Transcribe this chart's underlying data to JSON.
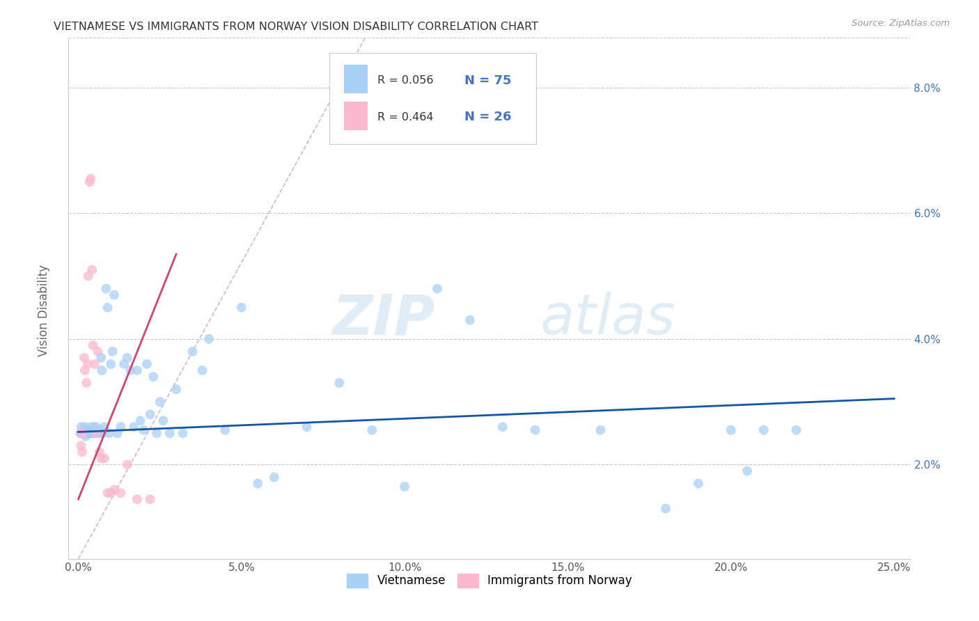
{
  "title": "VIETNAMESE VS IMMIGRANTS FROM NORWAY VISION DISABILITY CORRELATION CHART",
  "source": "Source: ZipAtlas.com",
  "xlabel_vals": [
    0.0,
    5.0,
    10.0,
    15.0,
    20.0,
    25.0
  ],
  "xlabel_ticks": [
    "0.0%",
    "5.0%",
    "10.0%",
    "15.0%",
    "20.0%",
    "25.0%"
  ],
  "ylabel": "Vision Disability",
  "ylabel_vals": [
    2.0,
    4.0,
    6.0,
    8.0
  ],
  "xlim": [
    -0.3,
    25.5
  ],
  "ylim": [
    0.5,
    8.8
  ],
  "watermark_zip": "ZIP",
  "watermark_atlas": "atlas",
  "legend1_label": "Vietnamese",
  "legend2_label": "Immigrants from Norway",
  "R1": "0.056",
  "N1": "75",
  "R2": "0.464",
  "N2": "26",
  "color_blue": "#A8D0F5",
  "color_pink": "#F9B8D0",
  "line_blue": "#1455A8",
  "line_pink": "#D84070",
  "line_diagonal": "#D0B0B8",
  "blue_line_x0": 0.0,
  "blue_line_y0": 2.52,
  "blue_line_x1": 25.0,
  "blue_line_y1": 3.05,
  "pink_line_x0": 0.0,
  "pink_line_y0": 1.45,
  "pink_line_x1": 3.0,
  "pink_line_y1": 5.35,
  "diag_x0": 0.0,
  "diag_y0": 0.5,
  "diag_x1": 8.8,
  "diag_y1": 8.8,
  "vietnamese_x": [
    0.08,
    0.09,
    0.12,
    0.15,
    0.18,
    0.2,
    0.22,
    0.25,
    0.28,
    0.3,
    0.32,
    0.35,
    0.38,
    0.4,
    0.42,
    0.45,
    0.48,
    0.5,
    0.52,
    0.55,
    0.58,
    0.6,
    0.65,
    0.68,
    0.7,
    0.72,
    0.75,
    0.8,
    0.85,
    0.9,
    0.95,
    1.0,
    1.05,
    1.1,
    1.2,
    1.3,
    1.4,
    1.5,
    1.6,
    1.7,
    1.8,
    1.9,
    2.0,
    2.1,
    2.2,
    2.3,
    2.4,
    2.5,
    2.6,
    2.8,
    3.0,
    3.2,
    3.5,
    3.8,
    4.0,
    4.5,
    5.0,
    5.5,
    6.0,
    7.0,
    8.0,
    9.0,
    10.0,
    11.0,
    12.0,
    13.0,
    14.0,
    16.0,
    18.0,
    19.0,
    20.0,
    20.5,
    21.0,
    22.0,
    0.06
  ],
  "vietnamese_y": [
    2.5,
    2.6,
    2.5,
    2.55,
    2.5,
    2.6,
    2.45,
    2.5,
    2.55,
    2.5,
    2.5,
    2.55,
    2.5,
    2.6,
    2.5,
    2.5,
    2.6,
    2.55,
    2.5,
    2.6,
    2.5,
    2.5,
    2.55,
    2.5,
    3.7,
    3.5,
    2.5,
    2.6,
    4.8,
    4.5,
    2.5,
    3.6,
    3.8,
    4.7,
    2.5,
    2.6,
    3.6,
    3.7,
    3.5,
    2.6,
    3.5,
    2.7,
    2.55,
    3.6,
    2.8,
    3.4,
    2.5,
    3.0,
    2.7,
    2.5,
    3.2,
    2.5,
    3.8,
    3.5,
    4.0,
    2.55,
    4.5,
    1.7,
    1.8,
    2.6,
    3.3,
    2.55,
    1.65,
    4.8,
    4.3,
    2.6,
    2.55,
    2.55,
    1.3,
    1.7,
    2.55,
    1.9,
    2.55,
    2.55,
    2.5
  ],
  "norway_x": [
    0.08,
    0.1,
    0.12,
    0.15,
    0.18,
    0.2,
    0.25,
    0.28,
    0.3,
    0.35,
    0.38,
    0.42,
    0.45,
    0.5,
    0.55,
    0.6,
    0.65,
    0.7,
    0.8,
    0.9,
    1.0,
    1.1,
    1.3,
    1.5,
    1.8,
    2.2
  ],
  "norway_y": [
    2.3,
    2.5,
    2.2,
    2.5,
    3.7,
    3.5,
    3.3,
    3.6,
    5.0,
    6.5,
    6.55,
    5.1,
    3.9,
    3.6,
    2.5,
    3.8,
    2.2,
    2.1,
    2.1,
    1.55,
    1.55,
    1.6,
    1.55,
    2.0,
    1.45,
    1.45
  ]
}
